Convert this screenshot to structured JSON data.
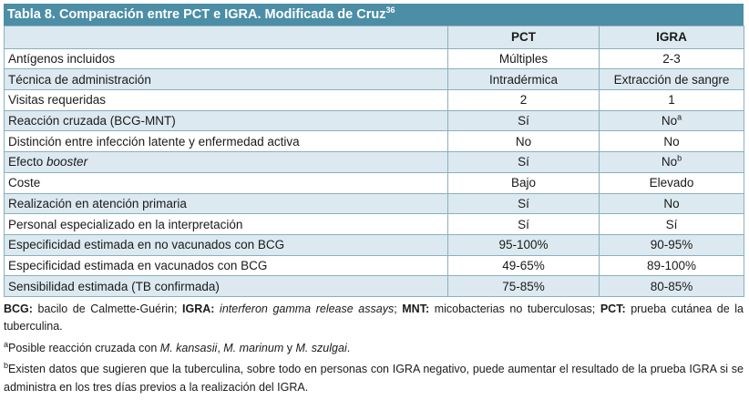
{
  "title": {
    "text": "Tabla 8. Comparación entre PCT e IGRA. Modificada de Cruz",
    "sup": "36"
  },
  "table": {
    "header": [
      "PCT",
      "IGRA"
    ],
    "rows": [
      [
        [
          {
            "t": "Antígenos incluidos"
          }
        ],
        [
          {
            "t": "Múltiples"
          }
        ],
        [
          {
            "t": "2-3"
          }
        ]
      ],
      [
        [
          {
            "t": "Técnica de administración"
          }
        ],
        [
          {
            "t": "Intradérmica"
          }
        ],
        [
          {
            "t": "Extracción de sangre"
          }
        ]
      ],
      [
        [
          {
            "t": "Visitas requeridas"
          }
        ],
        [
          {
            "t": "2"
          }
        ],
        [
          {
            "t": "1"
          }
        ]
      ],
      [
        [
          {
            "t": "Reacción cruzada (BCG-MNT)"
          }
        ],
        [
          {
            "t": "Sí"
          }
        ],
        [
          {
            "t": "No"
          },
          {
            "t": "a",
            "sup": true
          }
        ]
      ],
      [
        [
          {
            "t": "Distinción entre infección latente y enfermedad activa"
          }
        ],
        [
          {
            "t": "No"
          }
        ],
        [
          {
            "t": "No"
          }
        ]
      ],
      [
        [
          {
            "t": "Efecto "
          },
          {
            "t": "booster",
            "i": true
          }
        ],
        [
          {
            "t": "Sí"
          }
        ],
        [
          {
            "t": "No"
          },
          {
            "t": "b",
            "sup": true
          }
        ]
      ],
      [
        [
          {
            "t": "Coste"
          }
        ],
        [
          {
            "t": "Bajo"
          }
        ],
        [
          {
            "t": "Elevado"
          }
        ]
      ],
      [
        [
          {
            "t": "Realización en atención primaria"
          }
        ],
        [
          {
            "t": "Sí"
          }
        ],
        [
          {
            "t": "No"
          }
        ]
      ],
      [
        [
          {
            "t": "Personal especializado en la interpretación"
          }
        ],
        [
          {
            "t": "Sí"
          }
        ],
        [
          {
            "t": "Sí"
          }
        ]
      ],
      [
        [
          {
            "t": "Especificidad estimada en no vacunados con BCG"
          }
        ],
        [
          {
            "t": "95-100%"
          }
        ],
        [
          {
            "t": "90-95%"
          }
        ]
      ],
      [
        [
          {
            "t": "Especificidad estimada en vacunados con BCG"
          }
        ],
        [
          {
            "t": "49-65%"
          }
        ],
        [
          {
            "t": "89-100%"
          }
        ]
      ],
      [
        [
          {
            "t": "Sensibilidad estimada (TB confirmada)"
          }
        ],
        [
          {
            "t": "75-85%"
          }
        ],
        [
          {
            "t": "80-85%"
          }
        ]
      ]
    ]
  },
  "footnotes": [
    [
      {
        "t": "BCG:",
        "b": true
      },
      {
        "t": " bacilo de Calmette-Guérin; "
      },
      {
        "t": "IGRA:",
        "b": true
      },
      {
        "t": " "
      },
      {
        "t": "interferon gamma release assays",
        "i": true
      },
      {
        "t": "; "
      },
      {
        "t": "MNT:",
        "b": true
      },
      {
        "t": " micobacterias no tuberculosas; "
      },
      {
        "t": "PCT:",
        "b": true
      },
      {
        "t": " prueba cutánea de la tuberculina."
      }
    ],
    [
      {
        "t": "a",
        "sup": true
      },
      {
        "t": "Posible reacción cruzada con "
      },
      {
        "t": "M. kansasii",
        "i": true
      },
      {
        "t": ", "
      },
      {
        "t": "M. marinum",
        "i": true
      },
      {
        "t": " y "
      },
      {
        "t": "M. szulgai",
        "i": true
      },
      {
        "t": "."
      }
    ],
    [
      {
        "t": "b",
        "sup": true
      },
      {
        "t": "Existen datos que sugieren que la tuberculina, sobre todo en personas con IGRA negativo, puede aumentar el resultado de la prueba IGRA si se administra en los tres días previos a la realización del IGRA."
      }
    ]
  ]
}
